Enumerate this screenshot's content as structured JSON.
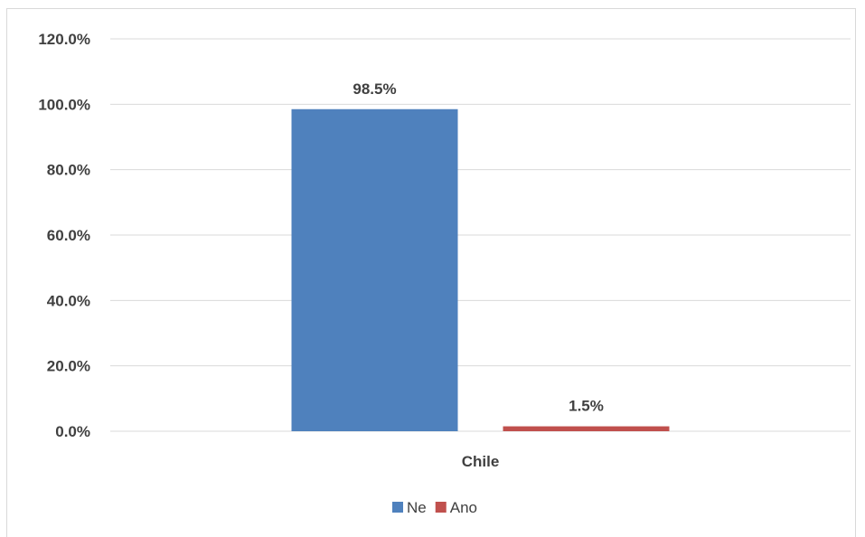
{
  "chart_data": {
    "type": "bar",
    "categories": [
      "Chile"
    ],
    "series": [
      {
        "name": "Ne",
        "values": [
          98.5
        ],
        "color": "#4f81bd",
        "label": "98.5%"
      },
      {
        "name": "Ano",
        "values": [
          1.5
        ],
        "color": "#c0504d",
        "label": "1.5%"
      }
    ],
    "ylim": [
      0,
      120
    ],
    "yticks": [
      {
        "value": 0,
        "label": "0.0%"
      },
      {
        "value": 20,
        "label": "20.0%"
      },
      {
        "value": 40,
        "label": "40.0%"
      },
      {
        "value": 60,
        "label": "60.0%"
      },
      {
        "value": 80,
        "label": "80.0%"
      },
      {
        "value": 100,
        "label": "100.0%"
      },
      {
        "value": 120,
        "label": "120.0%"
      }
    ],
    "grid": true,
    "legend_position": "bottom",
    "title": "",
    "xlabel": "",
    "ylabel": ""
  }
}
